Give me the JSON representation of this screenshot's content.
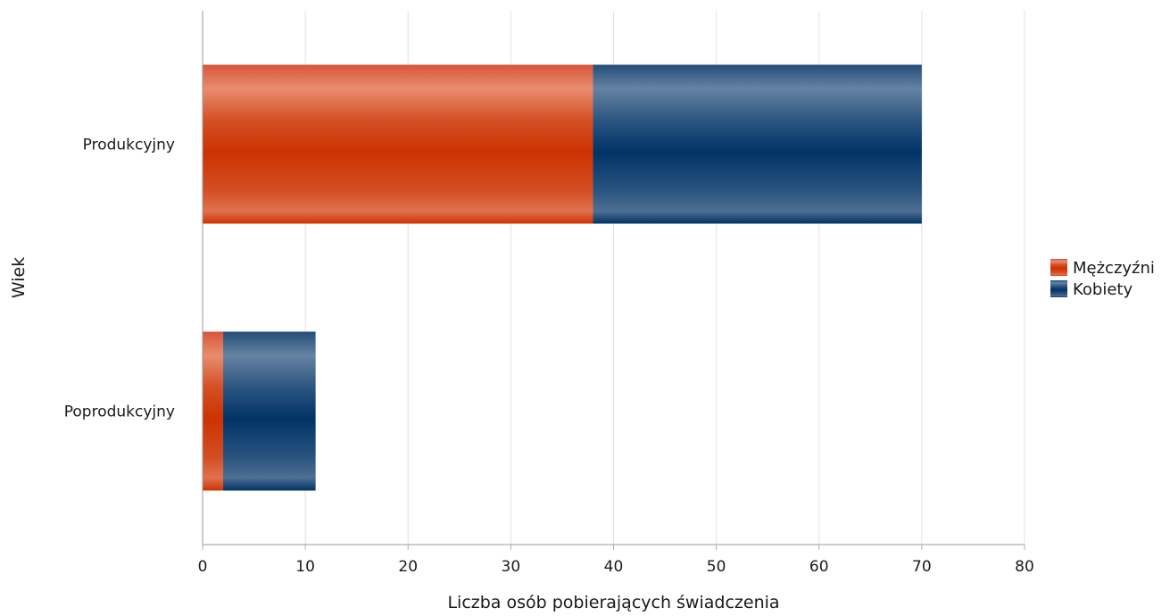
{
  "chart_data": {
    "type": "bar",
    "orientation": "horizontal",
    "stacked": true,
    "categories": [
      "Produkcyjny",
      "Poprodukcyjny"
    ],
    "series": [
      {
        "name": "Mężczyźni",
        "values": [
          38,
          2
        ],
        "color": "#cc3300"
      },
      {
        "name": "Kobiety",
        "values": [
          32,
          9
        ],
        "color": "#003366"
      }
    ],
    "xlabel": "Liczba osób pobierających świadczenia",
    "ylabel": "Wiek",
    "xlim": [
      0,
      80
    ],
    "xticks": [
      0,
      10,
      20,
      30,
      40,
      50,
      60,
      70,
      80
    ],
    "grid": true,
    "legend_position": "right"
  }
}
